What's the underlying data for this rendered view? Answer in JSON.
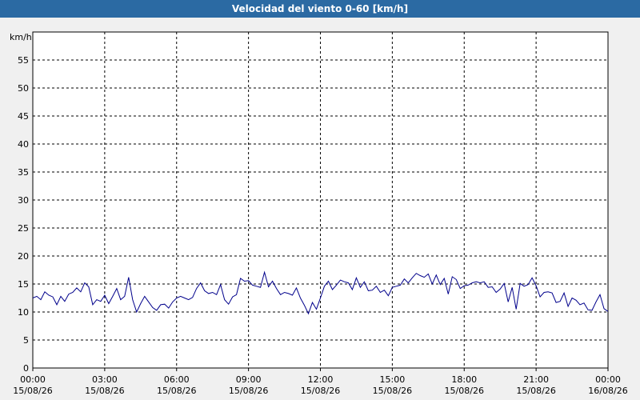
{
  "window": {
    "title": "Velocidad del viento 0-60 [km/h]"
  },
  "chart_data": {
    "type": "line",
    "title": "Velocidad del viento 0-60 [km/h]",
    "ylabel": "km/h",
    "ylim": [
      0,
      60
    ],
    "y_ticks": [
      0,
      5,
      10,
      15,
      20,
      25,
      30,
      35,
      40,
      45,
      50,
      55
    ],
    "x_ticks": [
      {
        "time": "00:00",
        "date": "15/08/26"
      },
      {
        "time": "03:00",
        "date": "15/08/26"
      },
      {
        "time": "06:00",
        "date": "15/08/26"
      },
      {
        "time": "09:00",
        "date": "15/08/26"
      },
      {
        "time": "12:00",
        "date": "15/08/26"
      },
      {
        "time": "15:00",
        "date": "15/08/26"
      },
      {
        "time": "18:00",
        "date": "15/08/26"
      },
      {
        "time": "21:00",
        "date": "15/08/26"
      },
      {
        "time": "00:00",
        "date": "16/08/26"
      }
    ],
    "xlim": [
      "15/08/26 00:00",
      "16/08/26 00:00"
    ],
    "grid": true,
    "line_color": "#00008b",
    "series": [
      {
        "values": [
          [
            "00:00",
            12.5
          ],
          [
            "00:10",
            12.8
          ],
          [
            "00:20",
            12.2
          ],
          [
            "00:30",
            13.6
          ],
          [
            "00:40",
            13.0
          ],
          [
            "00:50",
            12.7
          ],
          [
            "01:00",
            11.3
          ],
          [
            "01:10",
            12.8
          ],
          [
            "01:20",
            11.9
          ],
          [
            "01:30",
            13.2
          ],
          [
            "01:40",
            13.5
          ],
          [
            "01:50",
            14.3
          ],
          [
            "02:00",
            13.6
          ],
          [
            "02:10",
            15.2
          ],
          [
            "02:20",
            14.5
          ],
          [
            "02:30",
            11.3
          ],
          [
            "02:40",
            12.2
          ],
          [
            "02:50",
            11.9
          ],
          [
            "03:00",
            13.0
          ],
          [
            "03:10",
            11.5
          ],
          [
            "03:20",
            12.8
          ],
          [
            "03:30",
            14.2
          ],
          [
            "03:40",
            12.2
          ],
          [
            "03:50",
            12.8
          ],
          [
            "04:00",
            16.2
          ],
          [
            "04:10",
            12.2
          ],
          [
            "04:20",
            10.0
          ],
          [
            "04:30",
            11.5
          ],
          [
            "04:40",
            12.8
          ],
          [
            "04:50",
            11.8
          ],
          [
            "05:00",
            10.8
          ],
          [
            "05:10",
            10.3
          ],
          [
            "05:20",
            11.3
          ],
          [
            "05:30",
            11.4
          ],
          [
            "05:40",
            10.7
          ],
          [
            "05:50",
            11.8
          ],
          [
            "06:00",
            12.5
          ],
          [
            "06:10",
            12.8
          ],
          [
            "06:20",
            12.5
          ],
          [
            "06:30",
            12.2
          ],
          [
            "06:40",
            12.6
          ],
          [
            "06:50",
            14.2
          ],
          [
            "07:00",
            15.2
          ],
          [
            "07:10",
            13.8
          ],
          [
            "07:20",
            13.3
          ],
          [
            "07:30",
            13.5
          ],
          [
            "07:40",
            13.1
          ],
          [
            "07:50",
            14.9
          ],
          [
            "08:00",
            12.2
          ],
          [
            "08:10",
            11.4
          ],
          [
            "08:20",
            12.7
          ],
          [
            "08:30",
            13.1
          ],
          [
            "08:40",
            16.0
          ],
          [
            "08:50",
            15.5
          ],
          [
            "09:00",
            15.6
          ],
          [
            "09:10",
            14.8
          ],
          [
            "09:20",
            14.6
          ],
          [
            "09:30",
            14.4
          ],
          [
            "09:40",
            17.1
          ],
          [
            "09:50",
            14.5
          ],
          [
            "10:00",
            15.5
          ],
          [
            "10:10",
            14.2
          ],
          [
            "10:20",
            13.1
          ],
          [
            "10:30",
            13.5
          ],
          [
            "10:40",
            13.3
          ],
          [
            "10:50",
            13.0
          ],
          [
            "11:00",
            14.3
          ],
          [
            "11:10",
            12.5
          ],
          [
            "11:20",
            11.2
          ],
          [
            "11:30",
            9.7
          ],
          [
            "11:40",
            11.7
          ],
          [
            "11:50",
            10.5
          ],
          [
            "12:00",
            12.5
          ],
          [
            "12:10",
            14.6
          ],
          [
            "12:20",
            15.5
          ],
          [
            "12:30",
            14.0
          ],
          [
            "12:40",
            14.8
          ],
          [
            "12:50",
            15.7
          ],
          [
            "13:00",
            15.4
          ],
          [
            "13:10",
            15.2
          ],
          [
            "13:20",
            14.0
          ],
          [
            "13:30",
            16.1
          ],
          [
            "13:40",
            14.4
          ],
          [
            "13:50",
            15.4
          ],
          [
            "14:00",
            13.8
          ],
          [
            "14:10",
            13.9
          ],
          [
            "14:20",
            14.6
          ],
          [
            "14:30",
            13.5
          ],
          [
            "14:40",
            13.9
          ],
          [
            "14:50",
            12.9
          ],
          [
            "15:00",
            14.4
          ],
          [
            "15:10",
            14.6
          ],
          [
            "15:20",
            14.8
          ],
          [
            "15:30",
            15.9
          ],
          [
            "15:40",
            15.2
          ],
          [
            "15:50",
            16.1
          ],
          [
            "16:00",
            16.9
          ],
          [
            "16:10",
            16.5
          ],
          [
            "16:20",
            16.2
          ],
          [
            "16:30",
            16.8
          ],
          [
            "16:40",
            15.0
          ],
          [
            "16:50",
            16.6
          ],
          [
            "17:00",
            14.9
          ],
          [
            "17:10",
            16.0
          ],
          [
            "17:20",
            13.2
          ],
          [
            "17:30",
            16.3
          ],
          [
            "17:40",
            15.8
          ],
          [
            "17:50",
            14.2
          ],
          [
            "18:00",
            14.7
          ],
          [
            "18:10",
            14.8
          ],
          [
            "18:20",
            15.2
          ],
          [
            "18:30",
            15.4
          ],
          [
            "18:40",
            15.2
          ],
          [
            "18:50",
            15.4
          ],
          [
            "19:00",
            14.4
          ],
          [
            "19:10",
            14.5
          ],
          [
            "19:20",
            13.5
          ],
          [
            "19:30",
            14.1
          ],
          [
            "19:40",
            15.1
          ],
          [
            "19:50",
            11.8
          ],
          [
            "20:00",
            14.4
          ],
          [
            "20:10",
            10.5
          ],
          [
            "20:20",
            15.1
          ],
          [
            "20:30",
            14.6
          ],
          [
            "20:40",
            14.9
          ],
          [
            "20:50",
            16.1
          ],
          [
            "21:00",
            14.7
          ],
          [
            "21:10",
            12.7
          ],
          [
            "21:20",
            13.5
          ],
          [
            "21:30",
            13.6
          ],
          [
            "21:40",
            13.4
          ],
          [
            "21:50",
            11.7
          ],
          [
            "22:00",
            11.9
          ],
          [
            "22:10",
            13.4
          ],
          [
            "22:20",
            11.0
          ],
          [
            "22:30",
            12.5
          ],
          [
            "22:40",
            12.1
          ],
          [
            "22:50",
            11.3
          ],
          [
            "23:00",
            11.6
          ],
          [
            "23:10",
            10.4
          ],
          [
            "23:20",
            10.3
          ],
          [
            "23:30",
            11.8
          ],
          [
            "23:40",
            13.1
          ],
          [
            "23:50",
            10.6
          ],
          [
            "24:00",
            10.1
          ]
        ]
      }
    ]
  }
}
